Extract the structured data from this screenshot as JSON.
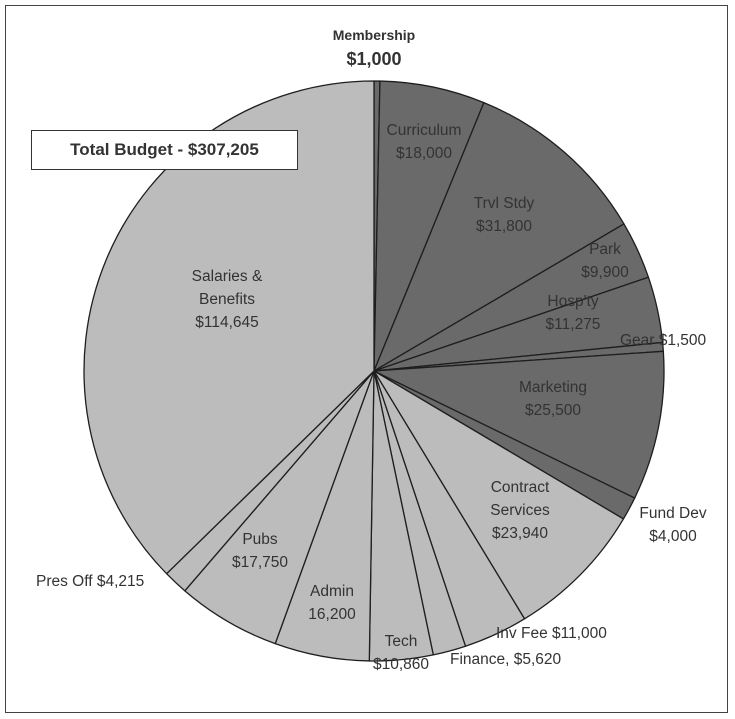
{
  "colors": {
    "light": "#bcbcbc",
    "dark": "#6a6a6a",
    "outline": "#1e1e1e",
    "label_text": "#333333"
  },
  "total_label": "Total Budget - $307,205",
  "chart_data": {
    "type": "pie",
    "title": "",
    "total": 307205,
    "slices": [
      {
        "category": "Membership",
        "value": 1000,
        "label": [
          "Membership",
          "$1,000"
        ],
        "shade": "dark"
      },
      {
        "category": "Curriculum",
        "value": 18000,
        "label": [
          "Curriculum",
          "$18,000"
        ],
        "shade": "dark"
      },
      {
        "category": "Trvl Stdy",
        "value": 31800,
        "label": [
          "Trvl Stdy",
          "$31,800"
        ],
        "shade": "dark"
      },
      {
        "category": "Park",
        "value": 9900,
        "label": [
          "Park",
          "$9,900"
        ],
        "shade": "dark"
      },
      {
        "category": "Hosp'ty",
        "value": 11275,
        "label": [
          "Hosp'ty",
          "$11,275"
        ],
        "shade": "dark"
      },
      {
        "category": "Gear",
        "value": 1500,
        "label": [
          "Gear $1,500"
        ],
        "shade": "dark"
      },
      {
        "category": "Marketing",
        "value": 25500,
        "label": [
          "Marketing",
          "$25,500"
        ],
        "shade": "dark"
      },
      {
        "category": "Fund Dev",
        "value": 4000,
        "label": [
          "Fund Dev",
          "$4,000"
        ],
        "shade": "dark"
      },
      {
        "category": "Contract Services",
        "value": 23940,
        "label": [
          "Contract",
          "Services",
          "$23,940"
        ],
        "shade": "light"
      },
      {
        "category": "Inv Fee",
        "value": 11000,
        "label": [
          "Inv Fee $11,000"
        ],
        "shade": "light"
      },
      {
        "category": "Finance",
        "value": 5620,
        "label": [
          "Finance, $5,620"
        ],
        "shade": "light"
      },
      {
        "category": "Tech",
        "value": 10860,
        "label": [
          "Tech",
          "$10,860"
        ],
        "shade": "light"
      },
      {
        "category": "Admin",
        "value": 16200,
        "label": [
          "Admin",
          "16,200"
        ],
        "shade": "light"
      },
      {
        "category": "Pubs",
        "value": 17750,
        "label": [
          "Pubs",
          "$17,750"
        ],
        "shade": "light"
      },
      {
        "category": "Pres Off",
        "value": 4215,
        "label": [
          "Pres Off $4,215"
        ],
        "shade": "light"
      },
      {
        "category": "Salaries & Benefits",
        "value": 114645,
        "label": [
          "Salaries &",
          "Benefits",
          "$114,645"
        ],
        "shade": "light"
      }
    ]
  }
}
